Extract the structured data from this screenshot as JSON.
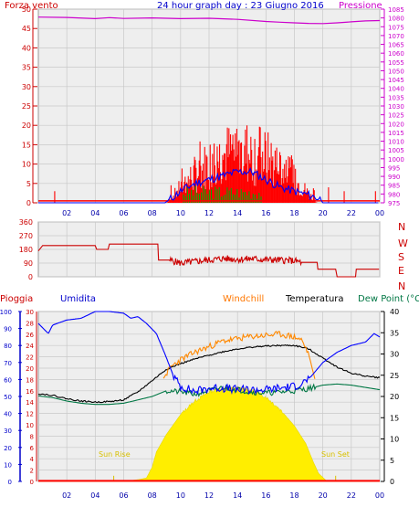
{
  "colors": {
    "wind": "#ff0000",
    "gust": "#0000ff",
    "avg": "#00aa00",
    "pressure": "#cc00cc",
    "direction": "#cc0000",
    "humidity": "#0000ff",
    "windchill": "#ff8800",
    "temperature": "#000000",
    "dewpoint": "#007744",
    "solar": "#ffee00",
    "rain": "#ff0000",
    "humidity_axis": "#0000cc",
    "temp_axis": "#000000",
    "grid": "#c8c8c8"
  },
  "chart_data": [
    {
      "type": "line",
      "id": "wind-pressure",
      "title": "24 hour graph day : 23 Giugno 2016",
      "left_label": "Forza vento",
      "right_label": "Pressione",
      "x_ticks": [
        "02",
        "04",
        "06",
        "08",
        "10",
        "12",
        "14",
        "16",
        "18",
        "20",
        "22",
        "00"
      ],
      "ylim_left": [
        0,
        50
      ],
      "y_ticks_left": [
        "0",
        "5",
        "10",
        "15",
        "20",
        "25",
        "30",
        "35",
        "40",
        "45",
        "50"
      ],
      "ylim_right": [
        975,
        1085
      ],
      "y_ticks_right": [
        "975",
        "980",
        "985",
        "990",
        "995",
        "1000",
        "1005",
        "1010",
        "1015",
        "1020",
        "1025",
        "1030",
        "1035",
        "1040",
        "1045",
        "1050",
        "1055",
        "1060",
        "1065",
        "1070",
        "1075",
        "1080",
        "1085"
      ],
      "series": [
        {
          "key": "pressure",
          "axis": "right",
          "x": [
            0,
            2,
            4,
            5,
            6,
            8,
            10,
            12,
            14,
            16,
            17,
            18,
            19,
            20,
            21,
            22,
            23,
            24
          ],
          "y": [
            1080.5,
            1080.3,
            1079.6,
            1080.2,
            1079.7,
            1080.0,
            1079.6,
            1079.8,
            1079.2,
            1078.0,
            1077.6,
            1077.2,
            1076.9,
            1076.8,
            1077.2,
            1077.8,
            1078.3,
            1078.5
          ]
        },
        {
          "key": "gust",
          "axis": "left",
          "x": [
            0,
            8.9,
            9.3,
            10,
            11,
            12,
            13,
            14,
            15,
            16,
            17,
            18,
            19,
            19.8,
            20,
            24
          ],
          "y": [
            0,
            0,
            1,
            3,
            5,
            6,
            7,
            8,
            8,
            6,
            4,
            3,
            2,
            1,
            0,
            0
          ]
        },
        {
          "key": "wind_baseline",
          "axis": "left",
          "x": [
            0,
            24
          ],
          "y": [
            0.5,
            0.5
          ]
        }
      ]
    },
    {
      "type": "line",
      "id": "wind-direction",
      "ylim": [
        0,
        360
      ],
      "y_ticks": [
        "0",
        "90",
        "180",
        "270",
        "360"
      ],
      "compass": [
        "N",
        "W",
        "S",
        "E",
        "N"
      ],
      "series": [
        {
          "key": "direction",
          "x": [
            0,
            0.3,
            1.8,
            4.0,
            4.1,
            4.9,
            5.0,
            8.4,
            8.45,
            9.2,
            10,
            11,
            12,
            13,
            14,
            15,
            16,
            17,
            18,
            18.5,
            19.6,
            19.65,
            20.9,
            21.0,
            22.3,
            22.35,
            24
          ],
          "y": [
            170,
            205,
            205,
            205,
            180,
            180,
            215,
            215,
            110,
            110,
            90,
            100,
            110,
            120,
            115,
            118,
            112,
            110,
            105,
            95,
            95,
            50,
            50,
            0,
            0,
            50,
            50
          ]
        }
      ]
    },
    {
      "type": "line",
      "id": "temp-humidity",
      "legend": [
        "Pioggia",
        "Umidita",
        "Windchill",
        "Temperatura",
        "Dew Point (°C"
      ],
      "annotations": [
        "Sun Rise",
        "Sun Set"
      ],
      "x_ticks": [
        "02",
        "04",
        "06",
        "08",
        "10",
        "12",
        "14",
        "16",
        "18",
        "20",
        "22",
        "00"
      ],
      "ylim_humidity": [
        0,
        100
      ],
      "y_ticks_humidity": [
        "0",
        "10",
        "20",
        "30",
        "40",
        "50",
        "60",
        "70",
        "80",
        "90",
        "100"
      ],
      "ylim_temp": [
        0,
        30
      ],
      "y_ticks_temp": [
        "0",
        "2",
        "4",
        "6",
        "8",
        "10",
        "12",
        "14",
        "16",
        "18",
        "20",
        "22",
        "24",
        "26",
        "28",
        "30"
      ],
      "ylim_right": [
        0,
        40
      ],
      "y_ticks_right": [
        "0",
        "5",
        "10",
        "15",
        "20",
        "25",
        "30",
        "35",
        "40"
      ],
      "series": [
        {
          "key": "humidity",
          "axis": "humidity",
          "x": [
            0,
            0.7,
            1,
            2,
            3,
            4,
            5,
            6,
            6.5,
            7,
            7.6,
            8.3,
            8.9,
            9.5,
            10,
            11,
            12,
            13,
            14,
            15,
            16,
            17,
            18,
            18.6,
            19.2,
            20,
            21,
            22,
            23,
            23.6,
            24
          ],
          "y": [
            93,
            87,
            92,
            95,
            96,
            100,
            100,
            99,
            96,
            97,
            93,
            87,
            75,
            62,
            56,
            53,
            55,
            55,
            54,
            54,
            54,
            55,
            56,
            58,
            62,
            70,
            76,
            80,
            82,
            87,
            85
          ]
        },
        {
          "key": "windchill",
          "axis": "temp",
          "x": [
            8.8,
            9.3,
            10,
            11,
            12,
            13,
            14,
            15,
            16,
            17,
            18,
            18.5,
            19,
            19.5
          ],
          "y": [
            18.2,
            20.2,
            21.5,
            22.8,
            23.8,
            24.8,
            25.2,
            25.6,
            25.8,
            26.0,
            25.5,
            25.0,
            22.5,
            17.5
          ]
        },
        {
          "key": "temperature",
          "axis": "temp",
          "x": [
            0,
            1,
            2,
            3,
            4,
            5,
            6,
            7,
            8,
            9,
            10,
            11,
            12,
            13,
            14,
            15,
            16,
            17,
            18,
            19,
            20,
            21,
            22,
            23,
            24
          ],
          "y": [
            15.5,
            15.2,
            14.6,
            14.2,
            14.0,
            14.1,
            14.4,
            15.8,
            17.8,
            19.8,
            20.8,
            21.6,
            22.3,
            22.9,
            23.4,
            23.7,
            23.9,
            24.0,
            24.0,
            23.4,
            21.8,
            20.2,
            19.1,
            18.6,
            18.3
          ]
        },
        {
          "key": "dewpoint",
          "axis": "temp",
          "x": [
            0,
            1,
            2,
            3,
            4,
            5,
            6,
            7,
            8,
            9,
            10,
            11,
            12,
            13,
            14,
            15,
            16,
            17,
            18,
            19,
            20,
            21,
            22,
            23,
            24
          ],
          "y": [
            15.1,
            14.8,
            14.2,
            13.8,
            13.6,
            13.6,
            13.8,
            14.4,
            15.0,
            16.0,
            15.8,
            15.4,
            16.0,
            16.6,
            16.2,
            15.8,
            15.6,
            15.8,
            16.0,
            16.4,
            17.0,
            17.2,
            17.0,
            16.6,
            16.2
          ]
        },
        {
          "key": "solar",
          "axis": "temp",
          "x": [
            0,
            6.0,
            7.0,
            7.6,
            8.0,
            8.3,
            9.0,
            10,
            11,
            12,
            13,
            14,
            15,
            16,
            17,
            18,
            18.8,
            19.3,
            19.7,
            20.3,
            24
          ],
          "y": [
            0,
            0,
            0.3,
            0.6,
            2.5,
            5.2,
            8.3,
            11.8,
            14.2,
            15.8,
            16.4,
            16.5,
            16.1,
            14.9,
            12.7,
            9.8,
            6.7,
            3.6,
            1.4,
            0,
            0
          ]
        },
        {
          "key": "rain",
          "axis": "temp",
          "x": [
            0,
            24
          ],
          "y": [
            0.1,
            0.1
          ]
        }
      ]
    }
  ]
}
